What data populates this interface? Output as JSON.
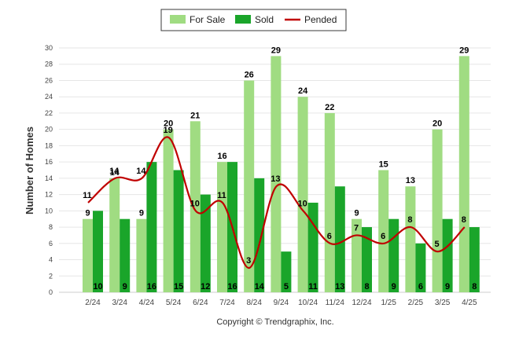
{
  "chart_data": {
    "type": "bar",
    "categories": [
      "2/24",
      "3/24",
      "4/24",
      "5/24",
      "6/24",
      "7/24",
      "8/24",
      "9/24",
      "10/24",
      "11/24",
      "12/24",
      "1/25",
      "2/25",
      "3/25",
      "4/25"
    ],
    "series": [
      {
        "name": "For Sale",
        "type": "bar",
        "color": "#a0dc82",
        "values": [
          9,
          14,
          9,
          20,
          21,
          16,
          26,
          29,
          24,
          22,
          9,
          15,
          13,
          20,
          29
        ]
      },
      {
        "name": "Sold",
        "type": "bar",
        "color": "#1aa52a",
        "values": [
          10,
          9,
          16,
          15,
          12,
          16,
          14,
          5,
          11,
          13,
          8,
          9,
          6,
          9,
          8
        ]
      },
      {
        "name": "Pended",
        "type": "line",
        "color": "#c00000",
        "values": [
          11,
          14,
          14,
          19,
          10,
          11,
          3,
          13,
          10,
          6,
          7,
          6,
          8,
          5,
          8
        ]
      }
    ],
    "ylabel": "Number of Homes",
    "xlabel": "",
    "ylim": [
      0,
      30
    ],
    "yticks": [
      0,
      2,
      4,
      6,
      8,
      10,
      12,
      14,
      16,
      18,
      20,
      22,
      24,
      26,
      28,
      30
    ],
    "grid": true,
    "legend_position": "top-center",
    "credit": "Copyright © Trendgraphix, Inc."
  }
}
